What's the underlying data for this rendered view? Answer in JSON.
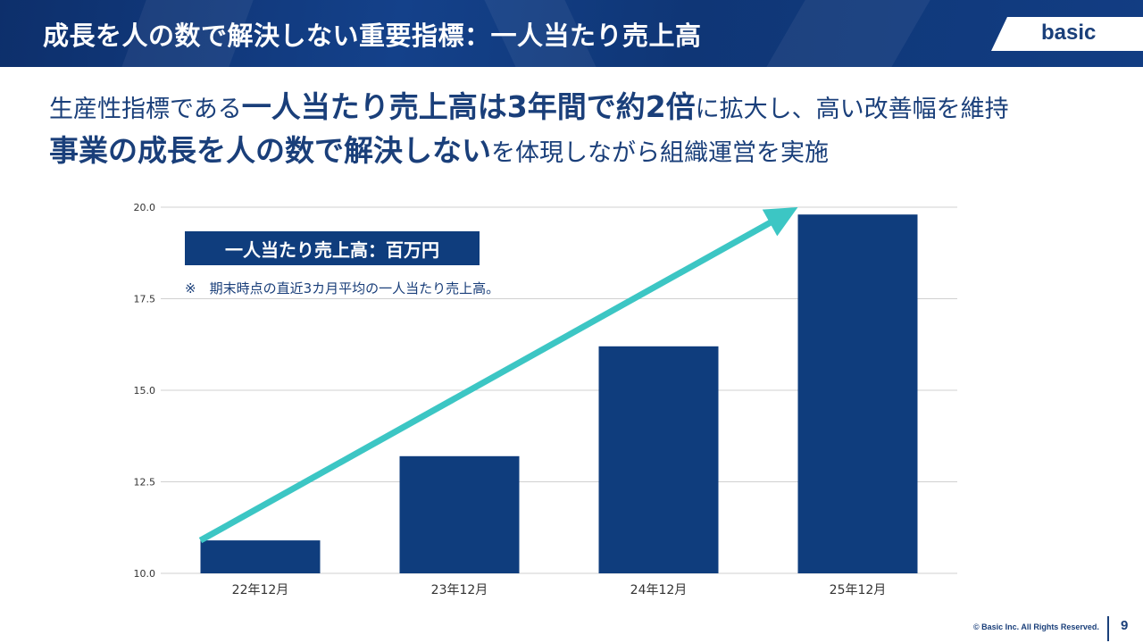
{
  "header": {
    "title": "成長を人の数で解決しない重要指標：一人当たり売上高",
    "logo": "basic"
  },
  "headline": {
    "line1": [
      {
        "text": "生産性指標である",
        "style": "normal"
      },
      {
        "text": "一人当たり売上高は3年間で約2倍",
        "style": "bold"
      },
      {
        "text": "に拡大し、高い改善幅を維持",
        "style": "normal"
      }
    ],
    "line2": [
      {
        "text": "事業の成長を人の数で解決しない",
        "style": "bold"
      },
      {
        "text": "を体現しながら組織運営を実施",
        "style": "normal"
      }
    ]
  },
  "chart_data": {
    "type": "bar",
    "categories": [
      "22年12月",
      "23年12月",
      "24年12月",
      "25年12月"
    ],
    "values": [
      10.9,
      13.2,
      16.2,
      19.8
    ],
    "ylim": [
      10.0,
      20.0
    ],
    "yticks": [
      "10.0",
      "12.5",
      "15.0",
      "17.5",
      "20.0"
    ],
    "legend": "一人当たり売上高：百万円",
    "note": "※　期末時点の直近3カ月平均の一人当たり売上高。",
    "bar_color": "#0f3d7d",
    "grid_color": "#d0d0d0",
    "trend_arrow": {
      "from_value": 10.9,
      "to_value": 20.0,
      "color": "#3cc6c4"
    }
  },
  "footer": {
    "copyright": "© Basic Inc. All Rights Reserved.",
    "page": "9"
  }
}
